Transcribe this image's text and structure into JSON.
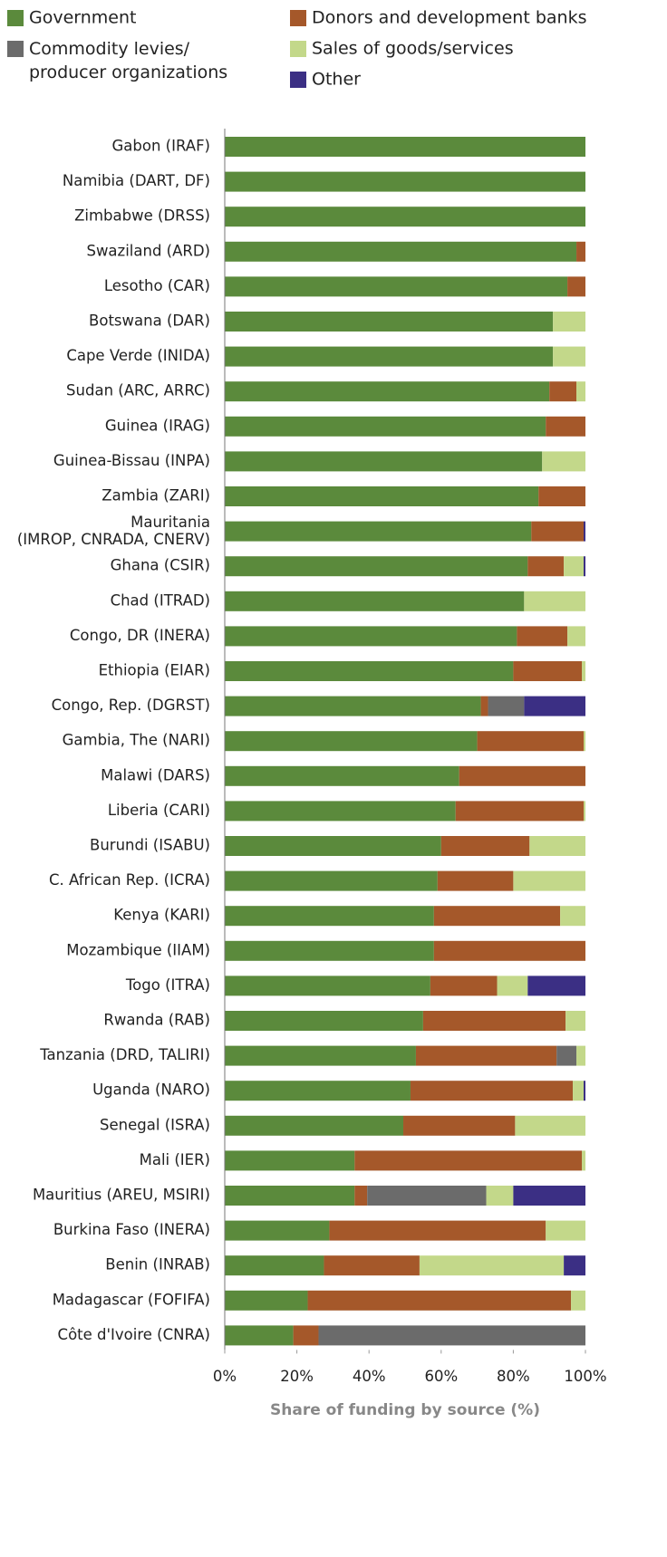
{
  "chart_data": {
    "type": "stacked-barh",
    "xlabel": "Share of funding by source (%)",
    "categories": [
      "Gabon (IRAF)",
      "Namibia (DART, DF)",
      "Zimbabwe (DRSS)",
      "Swaziland (ARD)",
      "Lesotho (CAR)",
      "Botswana (DAR)",
      "Cape Verde (INIDA)",
      "Sudan (ARC, ARRC)",
      "Guinea (IRAG)",
      "Guinea-Bissau (INPA)",
      "Zambia (ZARI)",
      "Mauritania\n(IMROP, CNRADA, CNERV)",
      "Ghana (CSIR)",
      "Chad (ITRAD)",
      "Congo, DR (INERA)",
      "Ethiopia (EIAR)",
      "Congo, Rep. (DGRST)",
      "Gambia, The (NARI)",
      "Malawi (DARS)",
      "Liberia (CARI)",
      "Burundi (ISABU)",
      "C. African Rep. (ICRA)",
      "Kenya (KARI)",
      "Mozambique (IIAM)",
      "Togo (ITRA)",
      "Rwanda (RAB)",
      "Tanzania (DRD, TALIRI)",
      "Uganda (NARO)",
      "Senegal (ISRA)",
      "Mali (IER)",
      "Mauritius (AREU, MSIRI)",
      "Burkina Faso (INERA)",
      "Benin (INRAB)",
      "Madagascar (FOFIFA)",
      "Côte d'Ivoire (CNRA)"
    ],
    "series": [
      {
        "name": "Government",
        "color": "#5b8a3c",
        "values": [
          100,
          100,
          100,
          97.5,
          95,
          91,
          91,
          90,
          89,
          88,
          87,
          85,
          84,
          83,
          81,
          80,
          71,
          70,
          65,
          64,
          60,
          59,
          58,
          58,
          57,
          55,
          53,
          51.5,
          49.5,
          36,
          36,
          29,
          27.5,
          23,
          19
        ]
      },
      {
        "name": "Donors and development banks",
        "color": "#a5582a",
        "values": [
          0,
          0,
          0,
          2.5,
          5,
          0,
          0,
          7.5,
          11,
          0,
          13,
          14.5,
          10,
          0,
          14,
          19,
          2,
          29.5,
          35,
          35.5,
          24.5,
          21,
          35,
          42,
          18.5,
          39.5,
          39,
          45,
          31,
          63,
          3.5,
          60,
          26.5,
          73,
          7
        ]
      },
      {
        "name": "Commodity levies/\nproducer organizations",
        "color": "#6b6b6b",
        "values": [
          0,
          0,
          0,
          0,
          0,
          0,
          0,
          0,
          0,
          0,
          0,
          0,
          0,
          0,
          0,
          0,
          10,
          0,
          0,
          0,
          0,
          0,
          0,
          0,
          0,
          0,
          5.5,
          0,
          0,
          0,
          33,
          0,
          0,
          0,
          74
        ]
      },
      {
        "name": "Sales of goods/services",
        "color": "#c3d88a",
        "values": [
          0,
          0,
          0,
          0,
          0,
          9,
          9,
          2.5,
          0,
          12,
          0,
          0,
          5.5,
          17,
          5,
          1,
          0,
          0.5,
          0,
          0.5,
          15.5,
          20,
          7,
          0,
          8.5,
          5.5,
          2.5,
          3,
          19.5,
          1,
          7.5,
          11,
          40,
          4,
          0
        ]
      },
      {
        "name": "Other",
        "color": "#3b2f84",
        "values": [
          0,
          0,
          0,
          0,
          0,
          0,
          0,
          0,
          0,
          0,
          0,
          0.5,
          0.5,
          0,
          0,
          0,
          17,
          0,
          0,
          0,
          0,
          0,
          0,
          0,
          16,
          0,
          0,
          0.5,
          0,
          0,
          20,
          0,
          6,
          0,
          0
        ]
      }
    ],
    "xlim": [
      0,
      100
    ],
    "xticks": [
      {
        "value": 0,
        "label": "0%"
      },
      {
        "value": 20,
        "label": "20%"
      },
      {
        "value": 40,
        "label": "40%"
      },
      {
        "value": 60,
        "label": "60%"
      },
      {
        "value": 80,
        "label": "80%"
      },
      {
        "value": 100,
        "label": "100%"
      }
    ]
  }
}
